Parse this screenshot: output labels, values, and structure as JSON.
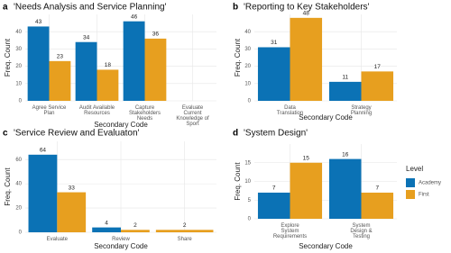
{
  "chart_data": [
    {
      "type": "bar",
      "panel": "a",
      "title": "'Needs Analysis and Service Planning'",
      "x_label": "Secondary Code",
      "y_label": "Freq. Count",
      "categories": [
        "Agree Service Plan",
        "Audit Available Resources",
        "Capture Stakeholders Needs",
        "Evaluate Current Knowledge of Sport"
      ],
      "series": [
        {
          "name": "Academy",
          "color": "#0b72b5",
          "values": [
            43,
            34,
            46,
            null
          ]
        },
        {
          "name": "First",
          "color": "#e79f1f",
          "values": [
            23,
            18,
            36,
            null
          ]
        }
      ],
      "ylim": [
        0,
        50
      ],
      "yticks": [
        0,
        10,
        20,
        30,
        40
      ],
      "grid": true
    },
    {
      "type": "bar",
      "panel": "b",
      "title": "'Reporting to Key Stakeholders'",
      "x_label": "Secondary Code",
      "y_label": "Freq. Count",
      "categories": [
        "Data Translation",
        "Strategy Planning"
      ],
      "series": [
        {
          "name": "Academy",
          "color": "#0b72b5",
          "values": [
            31,
            11
          ]
        },
        {
          "name": "First",
          "color": "#e79f1f",
          "values": [
            48,
            17
          ]
        }
      ],
      "ylim": [
        0,
        50
      ],
      "yticks": [
        0,
        10,
        20,
        30,
        40
      ],
      "grid": true
    },
    {
      "type": "bar",
      "panel": "c",
      "title": "'Service Review and Evaluaton'",
      "x_label": "Secondary Code",
      "y_label": "Freq. Count",
      "categories": [
        "Evaluate",
        "Review",
        "Share"
      ],
      "series": [
        {
          "name": "Academy",
          "color": "#0b72b5",
          "values": [
            64,
            4,
            null
          ]
        },
        {
          "name": "First",
          "color": "#e79f1f",
          "values": [
            33,
            2,
            2
          ]
        }
      ],
      "ylim": [
        0,
        75
      ],
      "yticks": [
        0,
        20,
        40,
        60
      ],
      "grid": true
    },
    {
      "type": "bar",
      "panel": "d",
      "title": "'System Design'",
      "x_label": "Secondary Code",
      "y_label": "Freq. Count",
      "categories": [
        "Explore System Requirements",
        "System Design & Testing"
      ],
      "series": [
        {
          "name": "Academy",
          "color": "#0b72b5",
          "values": [
            7,
            16
          ]
        },
        {
          "name": "First",
          "color": "#e79f1f",
          "values": [
            15,
            7
          ]
        }
      ],
      "ylim": [
        0,
        20
      ],
      "yticks": [
        0,
        5,
        10,
        15
      ],
      "grid": true,
      "legend_title": "Level",
      "legend": "right"
    }
  ]
}
